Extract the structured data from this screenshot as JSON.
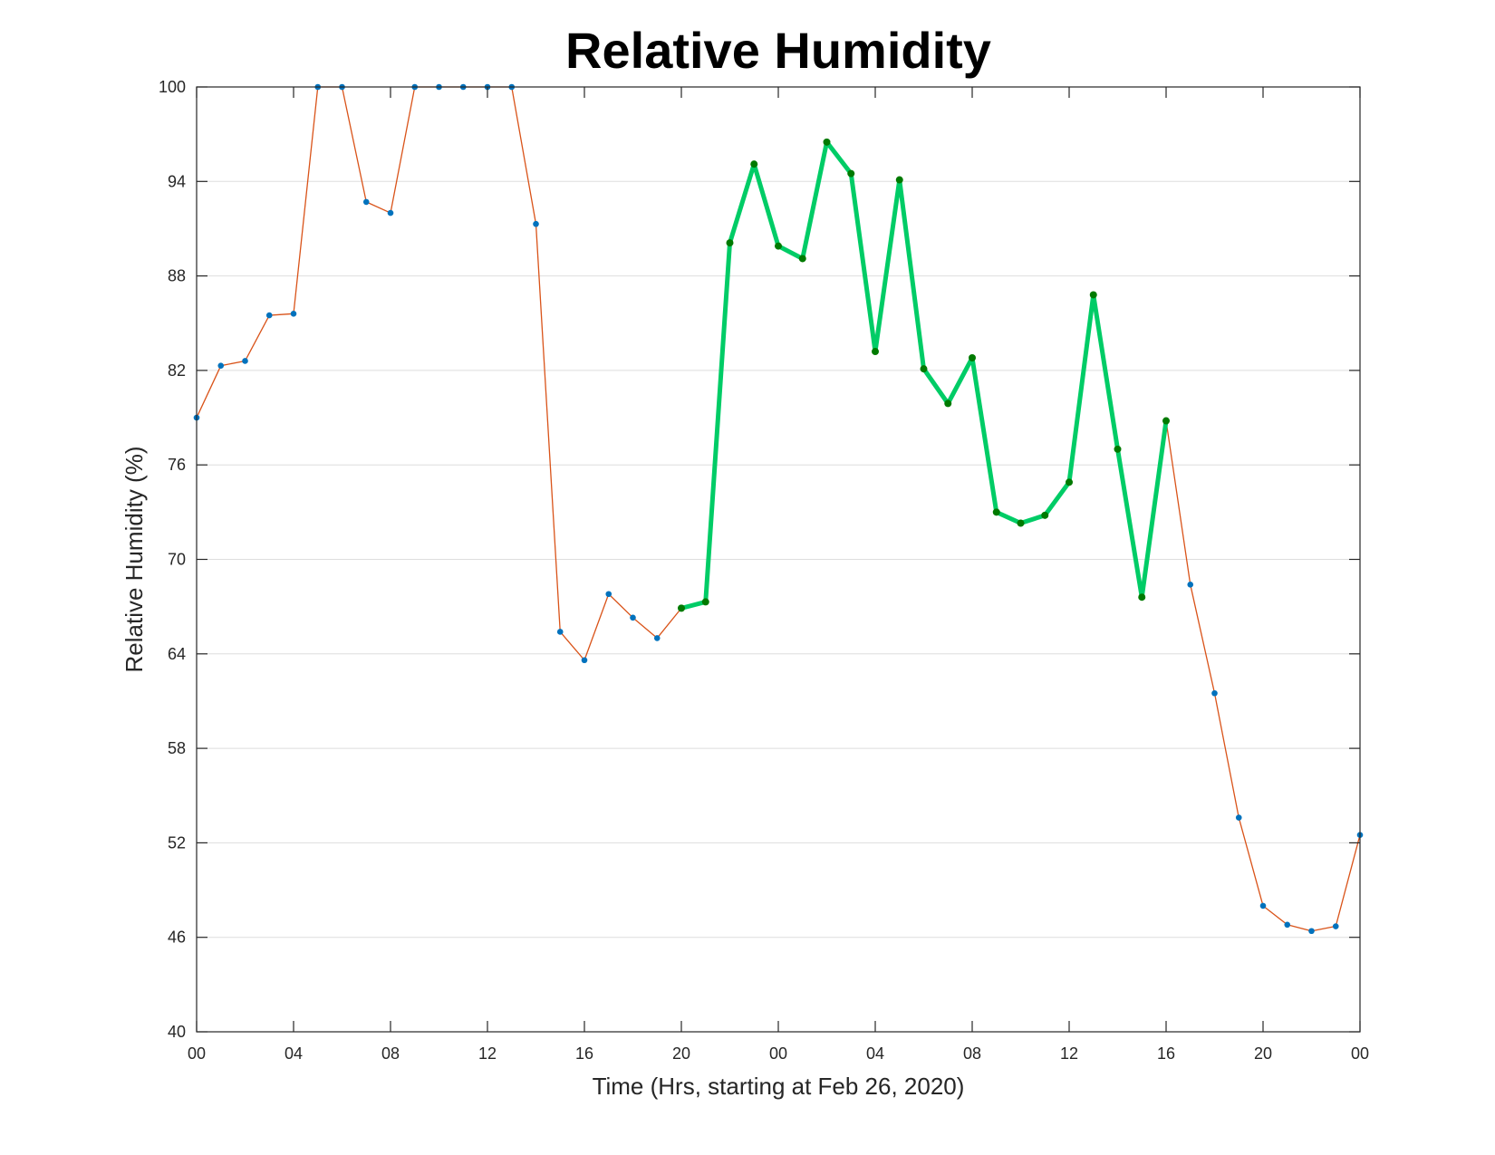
{
  "chart_data": {
    "type": "line",
    "title": "Relative Humidity",
    "xlabel": "Time (Hrs, starting at Feb 26, 2020)",
    "ylabel": "Relative Humidity (%)",
    "xlim": [
      0,
      48
    ],
    "ylim": [
      40,
      100
    ],
    "x_ticks": [
      0,
      4,
      8,
      12,
      16,
      20,
      24,
      28,
      32,
      36,
      40,
      44,
      48
    ],
    "x_tick_labels": [
      "00",
      "04",
      "08",
      "12",
      "16",
      "20",
      "00",
      "04",
      "08",
      "12",
      "16",
      "20",
      "00"
    ],
    "y_ticks": [
      40,
      46,
      52,
      58,
      64,
      70,
      76,
      82,
      88,
      94,
      100
    ],
    "grid": "horizontal",
    "x": [
      0,
      1,
      2,
      3,
      4,
      5,
      6,
      7,
      8,
      9,
      10,
      11,
      12,
      13,
      14,
      15,
      16,
      17,
      18,
      19,
      20,
      21,
      22,
      23,
      24,
      25,
      26,
      27,
      28,
      29,
      30,
      31,
      32,
      33,
      34,
      35,
      36,
      37,
      38,
      39,
      40,
      41,
      42,
      43,
      44,
      45,
      46,
      47,
      48
    ],
    "series": [
      {
        "values": [
          79,
          82.3,
          82.6,
          85.5,
          85.6,
          100,
          100,
          92.7,
          92,
          100,
          100,
          100,
          100,
          100,
          91.3,
          65.4,
          63.6,
          67.8,
          66.3,
          65,
          66.9,
          67.3,
          90.1,
          95.1,
          89.9,
          89.1,
          96.5,
          94.5,
          83.2,
          94.1,
          82.1,
          79.9,
          82.8,
          73,
          72.3,
          72.8,
          74.9,
          86.8,
          77,
          67.6,
          78.8,
          68.4,
          61.5,
          53.6,
          48,
          46.8,
          46.4,
          46.7,
          52.5
        ],
        "color": "#d95319",
        "marker_color": "#0072bd"
      },
      {
        "x_start": 20,
        "x_end": 40,
        "color": "#00cc66",
        "marker_color": "#007a00"
      }
    ]
  }
}
